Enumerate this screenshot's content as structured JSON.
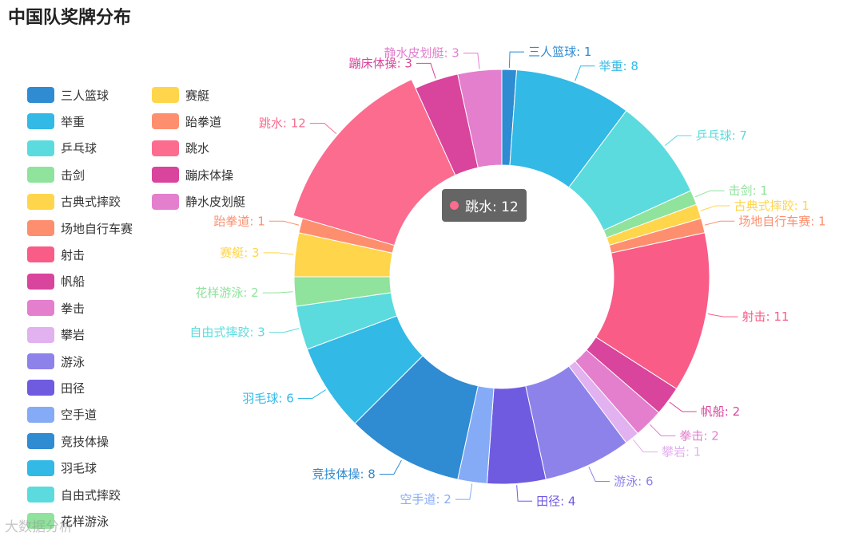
{
  "title": "中国队奖牌分布",
  "tooltip": {
    "text": "跳水: 12",
    "color": "#fc6c8f"
  },
  "watermark": "大数据分析",
  "chart_data": {
    "type": "pie",
    "donut": true,
    "legend_position": "left",
    "emphasized": "跳水",
    "slices": [
      {
        "name": "三人篮球",
        "value": 1,
        "color": "#2f8bd2"
      },
      {
        "name": "举重",
        "value": 8,
        "color": "#32b9e6"
      },
      {
        "name": "乒乓球",
        "value": 7,
        "color": "#5bdbdd"
      },
      {
        "name": "击剑",
        "value": 1,
        "color": "#8fe39c"
      },
      {
        "name": "古典式摔跤",
        "value": 1,
        "color": "#ffd54b"
      },
      {
        "name": "场地自行车赛",
        "value": 1,
        "color": "#fd8f6f"
      },
      {
        "name": "射击",
        "value": 11,
        "color": "#f95c86"
      },
      {
        "name": "帆船",
        "value": 2,
        "color": "#d9449c"
      },
      {
        "name": "拳击",
        "value": 2,
        "color": "#e37fcd"
      },
      {
        "name": "攀岩",
        "value": 1,
        "color": "#e2b1ef"
      },
      {
        "name": "游泳",
        "value": 6,
        "color": "#8d82ea"
      },
      {
        "name": "田径",
        "value": 4,
        "color": "#6f5be0"
      },
      {
        "name": "空手道",
        "value": 2,
        "color": "#85abf7"
      },
      {
        "name": "竞技体操",
        "value": 8,
        "color": "#2f8bd2"
      },
      {
        "name": "羽毛球",
        "value": 6,
        "color": "#32b9e6"
      },
      {
        "name": "自由式摔跤",
        "value": 3,
        "color": "#5bdbdd"
      },
      {
        "name": "花样游泳",
        "value": 2,
        "color": "#8fe39c"
      },
      {
        "name": "赛艇",
        "value": 3,
        "color": "#ffd54b"
      },
      {
        "name": "跆拳道",
        "value": 1,
        "color": "#fd8f6f"
      },
      {
        "name": "跳水",
        "value": 12,
        "color": "#fc6c8f"
      },
      {
        "name": "蹦床体操",
        "value": 3,
        "color": "#d9449c"
      },
      {
        "name": "静水皮划艇",
        "value": 3,
        "color": "#e37fcd"
      }
    ]
  }
}
